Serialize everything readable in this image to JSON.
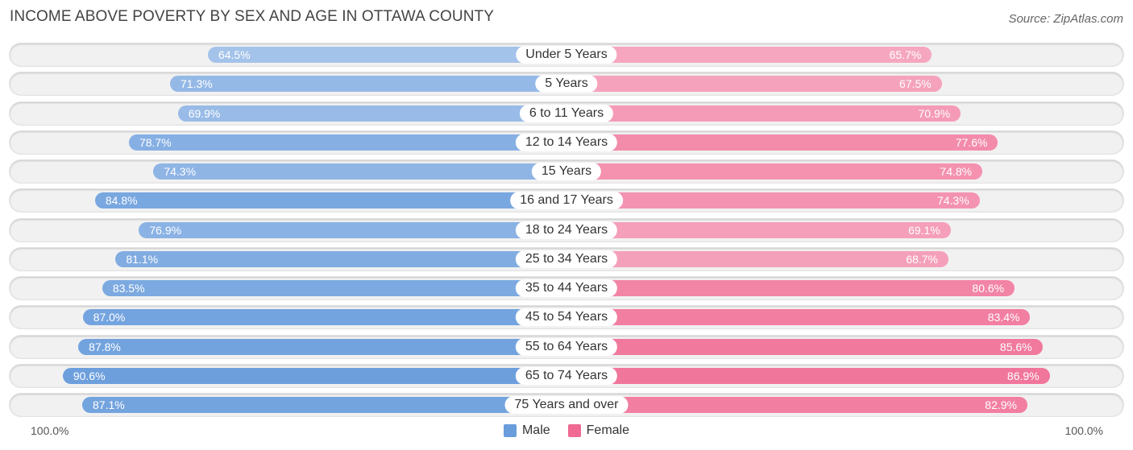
{
  "title": "INCOME ABOVE POVERTY BY SEX AND AGE IN OTTAWA COUNTY",
  "source": "Source: ZipAtlas.com",
  "colors": {
    "male_light": "#adc9ec",
    "male_dark": "#6a9ddc",
    "female_light": "#f7b4c9",
    "female_dark": "#f06a93"
  },
  "axis": {
    "left_label": "100.0%",
    "right_label": "100.0%"
  },
  "legend": {
    "male": "Male",
    "female": "Female"
  },
  "chart_data": {
    "type": "bar",
    "orientation": "horizontal-diverging",
    "title": "INCOME ABOVE POVERTY BY SEX AND AGE IN OTTAWA COUNTY",
    "xlim": [
      -100,
      100
    ],
    "categories": [
      "Under 5 Years",
      "5 Years",
      "6 to 11 Years",
      "12 to 14 Years",
      "15 Years",
      "16 and 17 Years",
      "18 to 24 Years",
      "25 to 34 Years",
      "35 to 44 Years",
      "45 to 54 Years",
      "55 to 64 Years",
      "65 to 74 Years",
      "75 Years and over"
    ],
    "series": [
      {
        "name": "Male",
        "values": [
          64.5,
          71.3,
          69.9,
          78.7,
          74.3,
          84.8,
          76.9,
          81.1,
          83.5,
          87.0,
          87.8,
          90.6,
          87.1
        ],
        "labels": [
          "64.5%",
          "71.3%",
          "69.9%",
          "78.7%",
          "74.3%",
          "84.8%",
          "76.9%",
          "81.1%",
          "83.5%",
          "87.0%",
          "87.8%",
          "90.6%",
          "87.1%"
        ]
      },
      {
        "name": "Female",
        "values": [
          65.7,
          67.5,
          70.9,
          77.6,
          74.8,
          74.3,
          69.1,
          68.7,
          80.6,
          83.4,
          85.6,
          86.9,
          82.9
        ],
        "labels": [
          "65.7%",
          "67.5%",
          "70.9%",
          "77.6%",
          "74.8%",
          "74.3%",
          "69.1%",
          "68.7%",
          "80.6%",
          "83.4%",
          "85.6%",
          "86.9%",
          "82.9%"
        ]
      }
    ],
    "legend": [
      "Male",
      "Female"
    ]
  }
}
